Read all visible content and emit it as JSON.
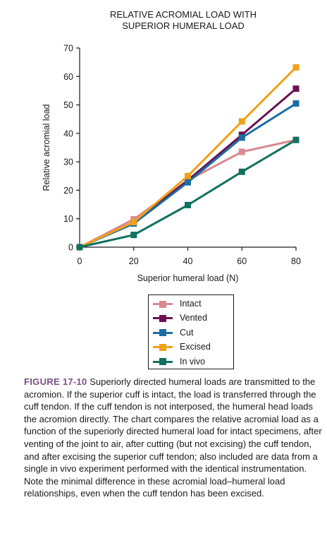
{
  "chart_data": {
    "type": "line",
    "title": "RELATIVE ACROMIAL LOAD WITH SUPERIOR HUMERAL LOAD",
    "title_lines": [
      "RELATIVE ACROMIAL LOAD WITH",
      "SUPERIOR HUMERAL LOAD"
    ],
    "xlabel": "Superior humeral load (N)",
    "ylabel": "Relative acromial load",
    "x": [
      0,
      20,
      40,
      60,
      80
    ],
    "xlim": [
      0,
      80
    ],
    "ylim": [
      0,
      70
    ],
    "xticks": [
      0,
      20,
      40,
      60,
      80
    ],
    "yticks": [
      0,
      10,
      20,
      30,
      40,
      50,
      60,
      70
    ],
    "grid": false,
    "legend_position": "below-chart",
    "marker": "square",
    "series": [
      {
        "name": "Intact",
        "color": "#d98a91",
        "values": [
          0,
          9.8,
          23.5,
          33.5,
          37.7
        ]
      },
      {
        "name": "Vented",
        "color": "#6b1050",
        "values": [
          0,
          8.5,
          23.5,
          39.5,
          55.7
        ]
      },
      {
        "name": "Cut",
        "color": "#1a6ea2",
        "values": [
          0,
          8.3,
          22.8,
          38.5,
          50.5
        ]
      },
      {
        "name": "Excised",
        "color": "#f1a116",
        "values": [
          0,
          8.8,
          25.0,
          44.2,
          63.2
        ]
      },
      {
        "name": "In vivo",
        "color": "#11705f",
        "values": [
          0,
          4.3,
          14.8,
          26.5,
          37.7
        ]
      }
    ]
  },
  "caption": {
    "label": "FIGURE 17-10",
    "text": " Superiorly directed humeral loads are transmitted to the acromion. If the superior cuff is intact, the load is transferred through the cuff tendon. If the cuff tendon is not interposed, the humeral head loads the acromion directly. The chart compares the relative acromial load as a function of the superiorly directed humeral load for intact specimens, after venting of the joint to air, after cutting (but not excising) the cuff tendon, and after excising the superior cuff tendon; also included are data from a single in vivo experiment performed with the identical instrumentation. Note the minimal difference in these acromial load–humeral load relationships, even when the cuff tendon has been excised."
  }
}
